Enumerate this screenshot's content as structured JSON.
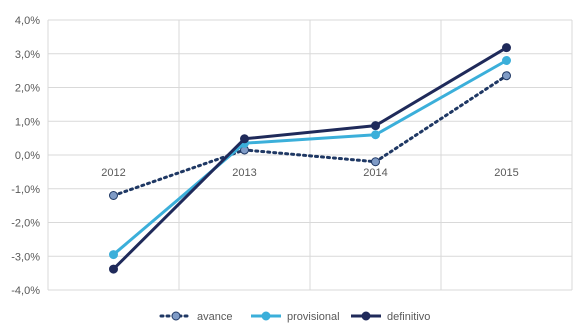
{
  "chart_data": {
    "type": "line",
    "categories": [
      "2012",
      "2013",
      "2014",
      "2015"
    ],
    "y_tick_labels": [
      "4,0%",
      "3,0%",
      "2,0%",
      "1,0%",
      "0,0%",
      "-1,0%",
      "-2,0%",
      "-3,0%",
      "-4,0%"
    ],
    "ylim": [
      -4.0,
      4.0
    ],
    "grid": true,
    "legend_position": "bottom",
    "series": [
      {
        "name": "avance",
        "values": [
          -1.2,
          0.15,
          -0.2,
          2.35
        ],
        "color": "#1F3864",
        "style": "dotted"
      },
      {
        "name": "provisional",
        "values": [
          -2.95,
          0.35,
          0.6,
          2.8
        ],
        "color": "#3BAFDA",
        "style": "solid"
      },
      {
        "name": "definitivo",
        "values": [
          -3.38,
          0.48,
          0.87,
          3.18
        ],
        "color": "#1F2A5A",
        "style": "solid"
      }
    ]
  }
}
